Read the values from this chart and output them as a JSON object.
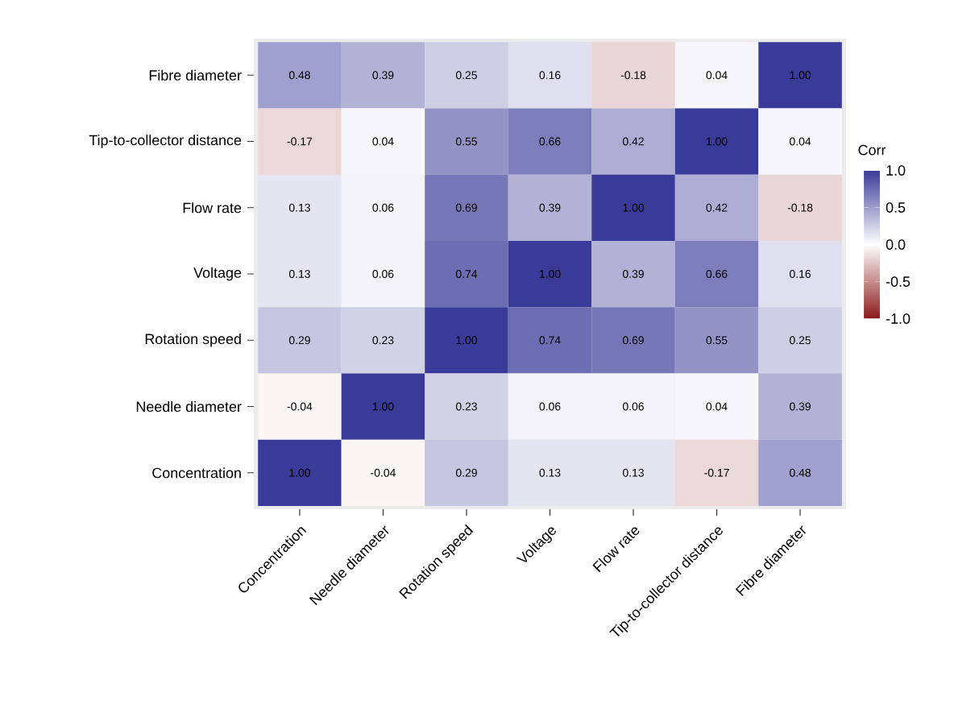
{
  "chart_data": {
    "type": "heatmap",
    "categories": [
      "Concentration",
      "Needle diameter",
      "Rotation speed",
      "Voltage",
      "Flow rate",
      "Tip-to-collector distance",
      "Fibre diameter"
    ],
    "y_categories": [
      "Fibre diameter",
      "Tip-to-collector distance",
      "Flow rate",
      "Voltage",
      "Rotation speed",
      "Needle diameter",
      "Concentration"
    ],
    "cells": [
      [
        0.48,
        0.39,
        0.25,
        0.16,
        -0.18,
        0.04,
        1.0
      ],
      [
        -0.17,
        0.04,
        0.55,
        0.66,
        0.42,
        1.0,
        0.04
      ],
      [
        0.13,
        0.06,
        0.69,
        0.39,
        1.0,
        0.42,
        -0.18
      ],
      [
        0.13,
        0.06,
        0.74,
        1.0,
        0.39,
        0.66,
        0.16
      ],
      [
        0.29,
        0.23,
        1.0,
        0.74,
        0.69,
        0.55,
        0.25
      ],
      [
        -0.04,
        1.0,
        0.23,
        0.06,
        0.06,
        0.04,
        0.39
      ],
      [
        1.0,
        -0.04,
        0.29,
        0.13,
        0.13,
        -0.17,
        0.48
      ]
    ],
    "cell_labels": [
      [
        "0.48",
        "0.39",
        "0.25",
        "0.16",
        "-0.18",
        "0.04",
        "1.00"
      ],
      [
        "-0.17",
        "0.04",
        "0.55",
        "0.66",
        "0.42",
        "1.00",
        "0.04"
      ],
      [
        "0.13",
        "0.06",
        "0.69",
        "0.39",
        "1.00",
        "0.42",
        "-0.18"
      ],
      [
        "0.13",
        "0.06",
        "0.74",
        "1.00",
        "0.39",
        "0.66",
        "0.16"
      ],
      [
        "0.29",
        "0.23",
        "1.00",
        "0.74",
        "0.69",
        "0.55",
        "0.25"
      ],
      [
        "-0.04",
        "1.00",
        "0.23",
        "0.06",
        "0.06",
        "0.04",
        "0.39"
      ],
      [
        "1.00",
        "-0.04",
        "0.29",
        "0.13",
        "0.13",
        "-0.17",
        "0.48"
      ]
    ],
    "colors": [
      "#8b1a1a",
      "#ffffff",
      "#3a3a98"
    ],
    "clim": [
      -1,
      1
    ],
    "cticks": [
      {
        "value": 1,
        "label": "1.0"
      },
      {
        "value": 0.5,
        "label": "0.5"
      },
      {
        "value": 0,
        "label": "0.0"
      },
      {
        "value": -0.5,
        "label": "-0.5"
      },
      {
        "value": -1,
        "label": "-1.0"
      }
    ],
    "clabel": "Corr"
  }
}
